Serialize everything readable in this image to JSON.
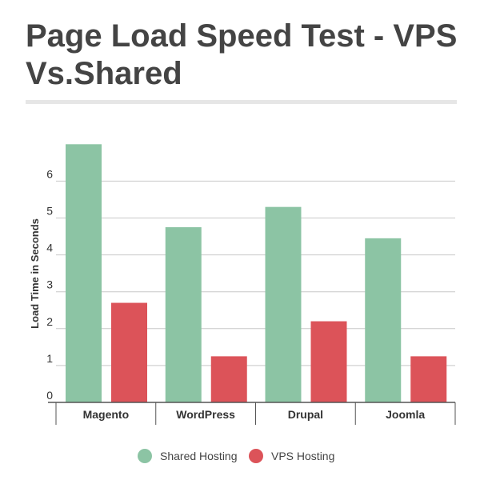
{
  "title": "Page Load Speed Test - VPS Vs.Shared",
  "colors": {
    "shared": "#8cc4a4",
    "vps": "#dc5359",
    "grid": "#c8c8c8",
    "axis": "#555555",
    "title_rule": "#e6e6e6"
  },
  "chart_data": {
    "type": "bar",
    "title": "Page Load Speed Test - VPS Vs.Shared",
    "xlabel": "",
    "ylabel": "Load Time in Seconds",
    "ylim": [
      0,
      7
    ],
    "yticks": [
      0,
      1,
      2,
      3,
      4,
      5,
      6
    ],
    "grid": true,
    "legend_position": "bottom",
    "categories": [
      "Magento",
      "WordPress",
      "Drupal",
      "Joomla"
    ],
    "series": [
      {
        "name": "Shared Hosting",
        "color": "#8cc4a4",
        "values": [
          7.0,
          4.75,
          5.3,
          4.45
        ]
      },
      {
        "name": "VPS Hosting",
        "color": "#dc5359",
        "values": [
          2.7,
          1.25,
          2.2,
          1.25
        ]
      }
    ]
  }
}
